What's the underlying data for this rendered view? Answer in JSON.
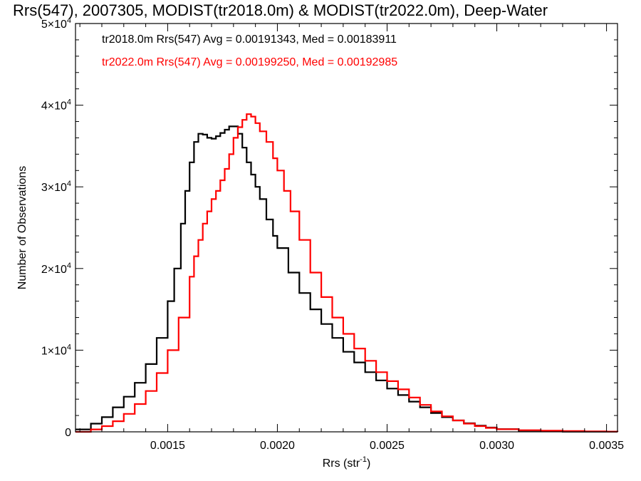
{
  "chart_data": {
    "type": "line",
    "title": "Rrs(547), 2007305, MODIST(tr2018.0m) & MODIST(tr2022.0m), Deep-Water",
    "xlabel_main": "Rrs (str",
    "xlabel_sup": "-1",
    "xlabel_close": ")",
    "ylabel": "Number of Observations",
    "xlim": [
      0.00108,
      0.00355
    ],
    "ylim": [
      0,
      50000
    ],
    "x_ticks": [
      {
        "value": 0.0015,
        "label": "0.0015"
      },
      {
        "value": 0.002,
        "label": "0.0020"
      },
      {
        "value": 0.0025,
        "label": "0.0025"
      },
      {
        "value": 0.003,
        "label": "0.0030"
      },
      {
        "value": 0.0035,
        "label": "0.0035"
      }
    ],
    "y_ticks": [
      {
        "value": 0,
        "label": "0",
        "sup": ""
      },
      {
        "value": 10000,
        "label": "1×10",
        "sup": "4"
      },
      {
        "value": 20000,
        "label": "2×10",
        "sup": "4"
      },
      {
        "value": 30000,
        "label": "3×10",
        "sup": "4"
      },
      {
        "value": 40000,
        "label": "4×10",
        "sup": "4"
      },
      {
        "value": 50000,
        "label": "5×10",
        "sup": "4"
      }
    ],
    "series": [
      {
        "color": "#000000",
        "legend": "tr2018.0m Rrs(547) Avg = 0.00191343, Med = 0.00183911",
        "points": [
          [
            0.00108,
            300
          ],
          [
            0.00115,
            1000
          ],
          [
            0.0012,
            1800
          ],
          [
            0.00125,
            3000
          ],
          [
            0.0013,
            4300
          ],
          [
            0.00135,
            6000
          ],
          [
            0.0014,
            8300
          ],
          [
            0.00145,
            11500
          ],
          [
            0.0015,
            16000
          ],
          [
            0.00153,
            20000
          ],
          [
            0.00156,
            25500
          ],
          [
            0.00158,
            29500
          ],
          [
            0.0016,
            33000
          ],
          [
            0.00162,
            35500
          ],
          [
            0.00164,
            36500
          ],
          [
            0.00166,
            36400
          ],
          [
            0.00168,
            36000
          ],
          [
            0.0017,
            35900
          ],
          [
            0.00172,
            36200
          ],
          [
            0.00174,
            36600
          ],
          [
            0.00176,
            37000
          ],
          [
            0.00178,
            37400
          ],
          [
            0.0018,
            37400
          ],
          [
            0.00182,
            36500
          ],
          [
            0.00184,
            34800
          ],
          [
            0.00186,
            33000
          ],
          [
            0.00188,
            31500
          ],
          [
            0.0019,
            30000
          ],
          [
            0.00192,
            28500
          ],
          [
            0.00195,
            26000
          ],
          [
            0.00198,
            24000
          ],
          [
            0.002,
            22500
          ],
          [
            0.00205,
            19500
          ],
          [
            0.0021,
            17000
          ],
          [
            0.00215,
            15000
          ],
          [
            0.0022,
            13200
          ],
          [
            0.00225,
            11500
          ],
          [
            0.0023,
            9800
          ],
          [
            0.00235,
            8500
          ],
          [
            0.0024,
            7300
          ],
          [
            0.00245,
            6300
          ],
          [
            0.0025,
            5300
          ],
          [
            0.00255,
            4500
          ],
          [
            0.0026,
            3700
          ],
          [
            0.00265,
            3000
          ],
          [
            0.0027,
            2300
          ],
          [
            0.00275,
            1800
          ],
          [
            0.0028,
            1400
          ],
          [
            0.00285,
            1050
          ],
          [
            0.0029,
            750
          ],
          [
            0.00295,
            520
          ],
          [
            0.003,
            330
          ],
          [
            0.0031,
            150
          ],
          [
            0.0032,
            60
          ],
          [
            0.0033,
            20
          ],
          [
            0.00355,
            0
          ]
        ]
      },
      {
        "color": "#ff0000",
        "legend": "tr2022.0m Rrs(547) Avg = 0.00199250, Med = 0.00192985",
        "points": [
          [
            0.00108,
            0
          ],
          [
            0.00115,
            300
          ],
          [
            0.0012,
            700
          ],
          [
            0.00125,
            1300
          ],
          [
            0.0013,
            2200
          ],
          [
            0.00135,
            3400
          ],
          [
            0.0014,
            5000
          ],
          [
            0.00145,
            7200
          ],
          [
            0.0015,
            10000
          ],
          [
            0.00155,
            14000
          ],
          [
            0.0016,
            19000
          ],
          [
            0.00162,
            21500
          ],
          [
            0.00164,
            23500
          ],
          [
            0.00166,
            25500
          ],
          [
            0.00168,
            27000
          ],
          [
            0.0017,
            28500
          ],
          [
            0.00172,
            29500
          ],
          [
            0.00174,
            30800
          ],
          [
            0.00176,
            32200
          ],
          [
            0.00178,
            34000
          ],
          [
            0.0018,
            36000
          ],
          [
            0.00182,
            37300
          ],
          [
            0.00184,
            38200
          ],
          [
            0.00186,
            38900
          ],
          [
            0.00188,
            38600
          ],
          [
            0.0019,
            37800
          ],
          [
            0.00192,
            36800
          ],
          [
            0.00195,
            35500
          ],
          [
            0.00198,
            33500
          ],
          [
            0.002,
            32000
          ],
          [
            0.00203,
            29500
          ],
          [
            0.00206,
            27000
          ],
          [
            0.0021,
            23500
          ],
          [
            0.00215,
            19500
          ],
          [
            0.0022,
            16500
          ],
          [
            0.00225,
            14000
          ],
          [
            0.0023,
            12000
          ],
          [
            0.00235,
            10200
          ],
          [
            0.0024,
            8700
          ],
          [
            0.00245,
            7300
          ],
          [
            0.0025,
            6200
          ],
          [
            0.00255,
            5200
          ],
          [
            0.0026,
            4200
          ],
          [
            0.00265,
            3300
          ],
          [
            0.0027,
            2500
          ],
          [
            0.00275,
            1900
          ],
          [
            0.0028,
            1400
          ],
          [
            0.00285,
            1000
          ],
          [
            0.0029,
            700
          ],
          [
            0.00295,
            480
          ],
          [
            0.003,
            320
          ],
          [
            0.0031,
            200
          ],
          [
            0.0032,
            150
          ],
          [
            0.0033,
            100
          ],
          [
            0.0034,
            60
          ],
          [
            0.0035,
            30
          ],
          [
            0.00355,
            10
          ]
        ]
      }
    ]
  }
}
